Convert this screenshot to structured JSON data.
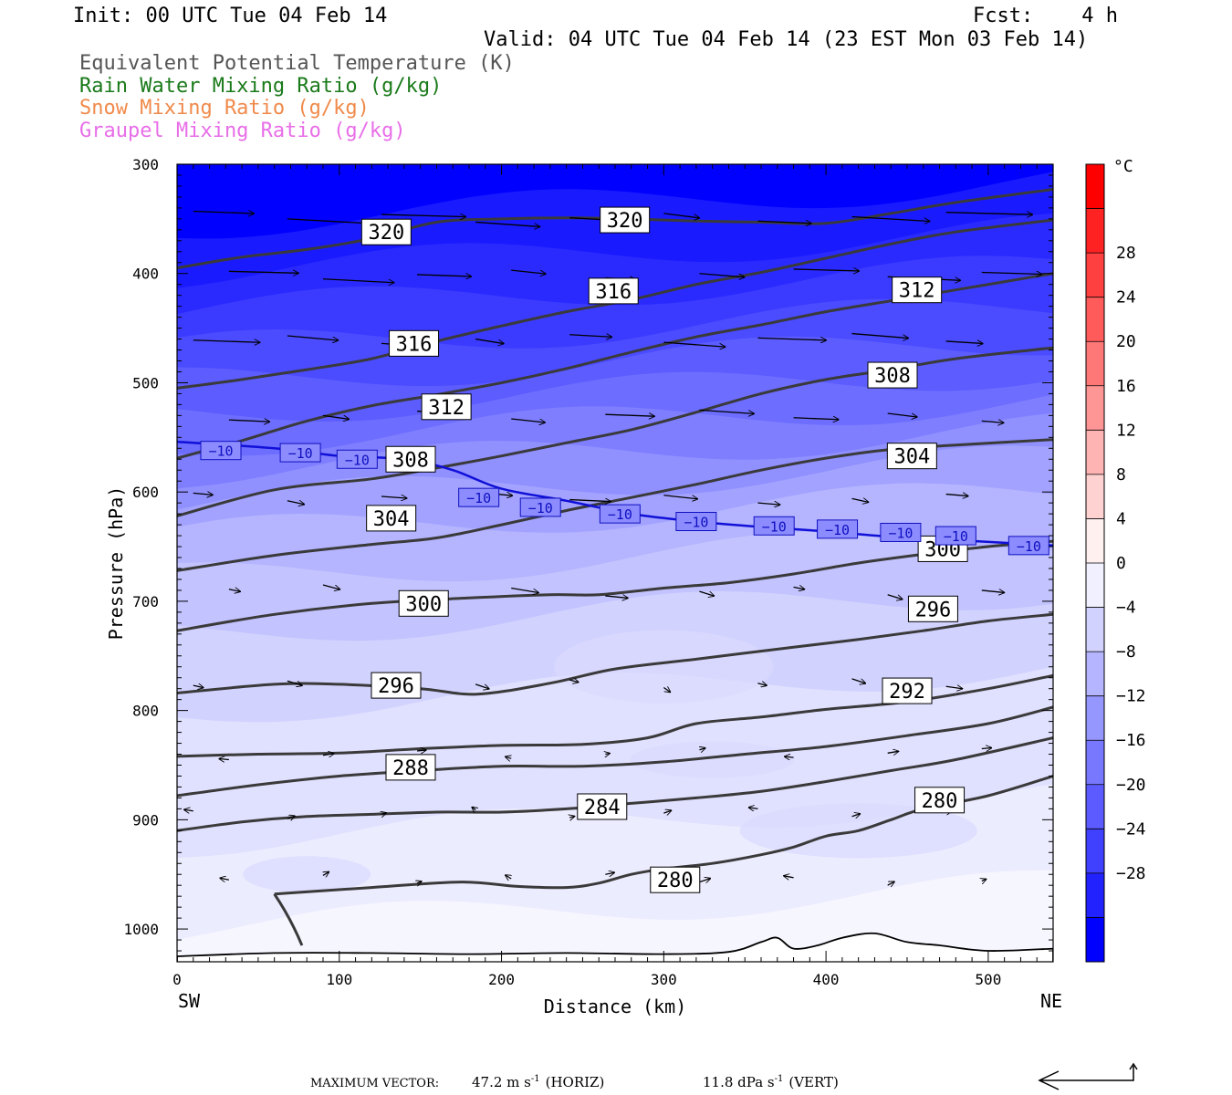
{
  "header": {
    "init": "Init: 00 UTC Tue 04 Feb 14",
    "fcst": "Fcst:    4 h",
    "valid": "Valid: 04 UTC Tue 04 Feb 14 (23 EST Mon 03 Feb 14)"
  },
  "legend_lines": [
    {
      "text": "Equivalent Potential Temperature (K)",
      "color": "#555555"
    },
    {
      "text": "Rain Water Mixing Ratio (g/kg)",
      "color": "#1a7a1a"
    },
    {
      "text": "Snow Mixing Ratio (g/kg)",
      "color": "#f08a4b"
    },
    {
      "text": "Graupel Mixing Ratio (g/kg)",
      "color": "#e86ee8"
    }
  ],
  "footer": {
    "max_vector_label": "MAXIMUM VECTOR:",
    "horiz_value": "47.2 m s",
    "horiz_exp": "-1",
    "horiz_tag": "(HORIZ)",
    "vert_value": "11.8 dPa s",
    "vert_exp": "-1",
    "vert_tag": "(VERT)"
  },
  "chart_data": {
    "type": "cross-section",
    "xlabel": "Distance (km)",
    "ylabel": "Pressure (hPa)",
    "x_ticks": [
      0,
      100,
      200,
      300,
      400,
      500
    ],
    "x_range": [
      0,
      540
    ],
    "y_ticks": [
      300,
      400,
      500,
      600,
      700,
      800,
      900,
      1000
    ],
    "y_range": [
      300,
      1030
    ],
    "left_end": "SW",
    "right_end": "NE",
    "colorbar": {
      "unit": "°C",
      "labels": [
        28,
        24,
        20,
        16,
        12,
        8,
        4,
        0,
        -4,
        -8,
        -12,
        -16,
        -20,
        -24,
        -28
      ],
      "colors": [
        "#ff0000",
        "#ff2222",
        "#ff4040",
        "#ff5b5b",
        "#ff7878",
        "#ff9696",
        "#ffb4b4",
        "#ffd2d2",
        "#fff0f0",
        "#f0f0ff",
        "#d2d2ff",
        "#b4b4ff",
        "#9696ff",
        "#7878ff",
        "#5b5bff",
        "#4040ff",
        "#2222ff",
        "#0000ff"
      ]
    },
    "theta_e_contours": [
      {
        "value": 280,
        "points": [
          [
            60,
            968
          ],
          [
            120,
            962
          ],
          [
            175,
            957
          ],
          [
            210,
            961
          ],
          [
            240,
            962
          ],
          [
            260,
            958
          ],
          [
            280,
            950
          ],
          [
            300,
            945
          ],
          [
            330,
            940
          ],
          [
            360,
            932
          ],
          [
            380,
            925
          ],
          [
            400,
            915
          ],
          [
            420,
            910
          ],
          [
            440,
            900
          ],
          [
            460,
            890
          ],
          [
            500,
            878
          ],
          [
            540,
            860
          ]
        ],
        "labels": [
          [
            307,
            955
          ],
          [
            470,
            882
          ]
        ]
      },
      {
        "value": 284,
        "points": [
          [
            0,
            910
          ],
          [
            40,
            902
          ],
          [
            80,
            897
          ],
          [
            120,
            895
          ],
          [
            160,
            893
          ],
          [
            200,
            893
          ],
          [
            240,
            890
          ],
          [
            280,
            885
          ],
          [
            320,
            880
          ],
          [
            360,
            874
          ],
          [
            400,
            865
          ],
          [
            440,
            855
          ],
          [
            480,
            845
          ],
          [
            540,
            825
          ]
        ],
        "labels": [
          [
            262,
            888
          ]
        ]
      },
      {
        "value": 288,
        "points": [
          [
            0,
            878
          ],
          [
            50,
            868
          ],
          [
            100,
            860
          ],
          [
            150,
            855
          ],
          [
            200,
            851
          ],
          [
            250,
            851
          ],
          [
            300,
            847
          ],
          [
            350,
            840
          ],
          [
            400,
            833
          ],
          [
            450,
            823
          ],
          [
            500,
            812
          ],
          [
            540,
            797
          ]
        ],
        "labels": [
          [
            144,
            852
          ]
        ]
      },
      {
        "value": 292,
        "points": [
          [
            0,
            842
          ],
          [
            50,
            840
          ],
          [
            100,
            839
          ],
          [
            150,
            835
          ],
          [
            200,
            832
          ],
          [
            250,
            831
          ],
          [
            290,
            825
          ],
          [
            320,
            812
          ],
          [
            360,
            806
          ],
          [
            400,
            799
          ],
          [
            450,
            792
          ],
          [
            500,
            780
          ],
          [
            540,
            768
          ]
        ],
        "labels": [
          [
            450,
            782
          ]
        ]
      },
      {
        "value": 296,
        "points": [
          [
            0,
            784
          ],
          [
            60,
            776
          ],
          [
            100,
            776
          ],
          [
            150,
            780
          ],
          [
            185,
            785
          ],
          [
            230,
            775
          ],
          [
            270,
            762
          ],
          [
            320,
            753
          ],
          [
            380,
            742
          ],
          [
            420,
            735
          ],
          [
            460,
            727
          ],
          [
            500,
            718
          ],
          [
            540,
            712
          ]
        ],
        "labels": [
          [
            135,
            777
          ],
          [
            466,
            707
          ]
        ]
      },
      {
        "value": 300,
        "points": [
          [
            0,
            727
          ],
          [
            60,
            712
          ],
          [
            120,
            702
          ],
          [
            180,
            697
          ],
          [
            230,
            694
          ],
          [
            260,
            694
          ],
          [
            300,
            688
          ],
          [
            340,
            683
          ],
          [
            380,
            675
          ],
          [
            420,
            665
          ],
          [
            460,
            657
          ],
          [
            500,
            650
          ],
          [
            540,
            645
          ]
        ],
        "labels": [
          [
            152,
            702
          ],
          [
            472,
            652
          ]
        ]
      },
      {
        "value": 304,
        "points": [
          [
            0,
            672
          ],
          [
            60,
            658
          ],
          [
            120,
            648
          ],
          [
            160,
            642
          ],
          [
            200,
            630
          ],
          [
            240,
            617
          ],
          [
            280,
            605
          ],
          [
            320,
            593
          ],
          [
            360,
            580
          ],
          [
            400,
            569
          ],
          [
            440,
            561
          ],
          [
            480,
            557
          ],
          [
            540,
            552
          ]
        ],
        "labels": [
          [
            132,
            624
          ],
          [
            453,
            567
          ]
        ]
      },
      {
        "value": 308,
        "points": [
          [
            0,
            622
          ],
          [
            60,
            598
          ],
          [
            120,
            588
          ],
          [
            160,
            578
          ],
          [
            200,
            567
          ],
          [
            240,
            555
          ],
          [
            280,
            543
          ],
          [
            320,
            527
          ],
          [
            360,
            510
          ],
          [
            400,
            497
          ],
          [
            440,
            488
          ],
          [
            480,
            478
          ],
          [
            540,
            468
          ]
        ],
        "labels": [
          [
            144,
            570
          ],
          [
            441,
            493
          ]
        ]
      },
      {
        "value": 312,
        "points": [
          [
            0,
            569
          ],
          [
            40,
            553
          ],
          [
            80,
            535
          ],
          [
            120,
            521
          ],
          [
            160,
            511
          ],
          [
            200,
            500
          ],
          [
            240,
            487
          ],
          [
            280,
            472
          ],
          [
            320,
            458
          ],
          [
            360,
            447
          ],
          [
            400,
            435
          ],
          [
            440,
            425
          ],
          [
            480,
            415
          ],
          [
            540,
            400
          ]
        ],
        "labels": [
          [
            166,
            522
          ],
          [
            456,
            415
          ]
        ]
      },
      {
        "value": 316,
        "points": [
          [
            0,
            505
          ],
          [
            40,
            497
          ],
          [
            80,
            488
          ],
          [
            120,
            478
          ],
          [
            160,
            462
          ],
          [
            200,
            448
          ],
          [
            240,
            435
          ],
          [
            280,
            424
          ],
          [
            320,
            410
          ],
          [
            360,
            399
          ],
          [
            400,
            386
          ],
          [
            440,
            373
          ],
          [
            480,
            362
          ],
          [
            540,
            351
          ]
        ],
        "labels": [
          [
            146,
            464
          ],
          [
            269,
            416
          ]
        ]
      },
      {
        "value": 320,
        "points": [
          [
            0,
            395
          ],
          [
            40,
            385
          ],
          [
            80,
            378
          ],
          [
            120,
            368
          ],
          [
            160,
            353
          ],
          [
            200,
            350
          ],
          [
            240,
            349
          ],
          [
            280,
            350
          ],
          [
            320,
            352
          ],
          [
            360,
            353
          ],
          [
            400,
            354
          ],
          [
            440,
            345
          ],
          [
            480,
            335
          ],
          [
            540,
            323
          ]
        ],
        "labels": [
          [
            129,
            362
          ],
          [
            276,
            351
          ]
        ]
      }
    ],
    "minus10_isotherm": {
      "value": -10,
      "points": [
        [
          0,
          554
        ],
        [
          60,
          560
        ],
        [
          100,
          567
        ],
        [
          140,
          570
        ],
        [
          170,
          580
        ],
        [
          200,
          597
        ],
        [
          240,
          608
        ],
        [
          280,
          620
        ],
        [
          320,
          627
        ],
        [
          360,
          632
        ],
        [
          400,
          636
        ],
        [
          440,
          641
        ],
        [
          480,
          644
        ],
        [
          540,
          649
        ]
      ],
      "labels": [
        [
          27,
          562
        ],
        [
          76,
          564
        ],
        [
          111,
          570
        ],
        [
          186,
          605
        ],
        [
          224,
          614
        ],
        [
          273,
          620
        ],
        [
          320,
          627
        ],
        [
          368,
          631
        ],
        [
          407,
          634
        ],
        [
          446,
          637
        ],
        [
          480,
          640
        ],
        [
          525,
          649
        ]
      ]
    }
  }
}
